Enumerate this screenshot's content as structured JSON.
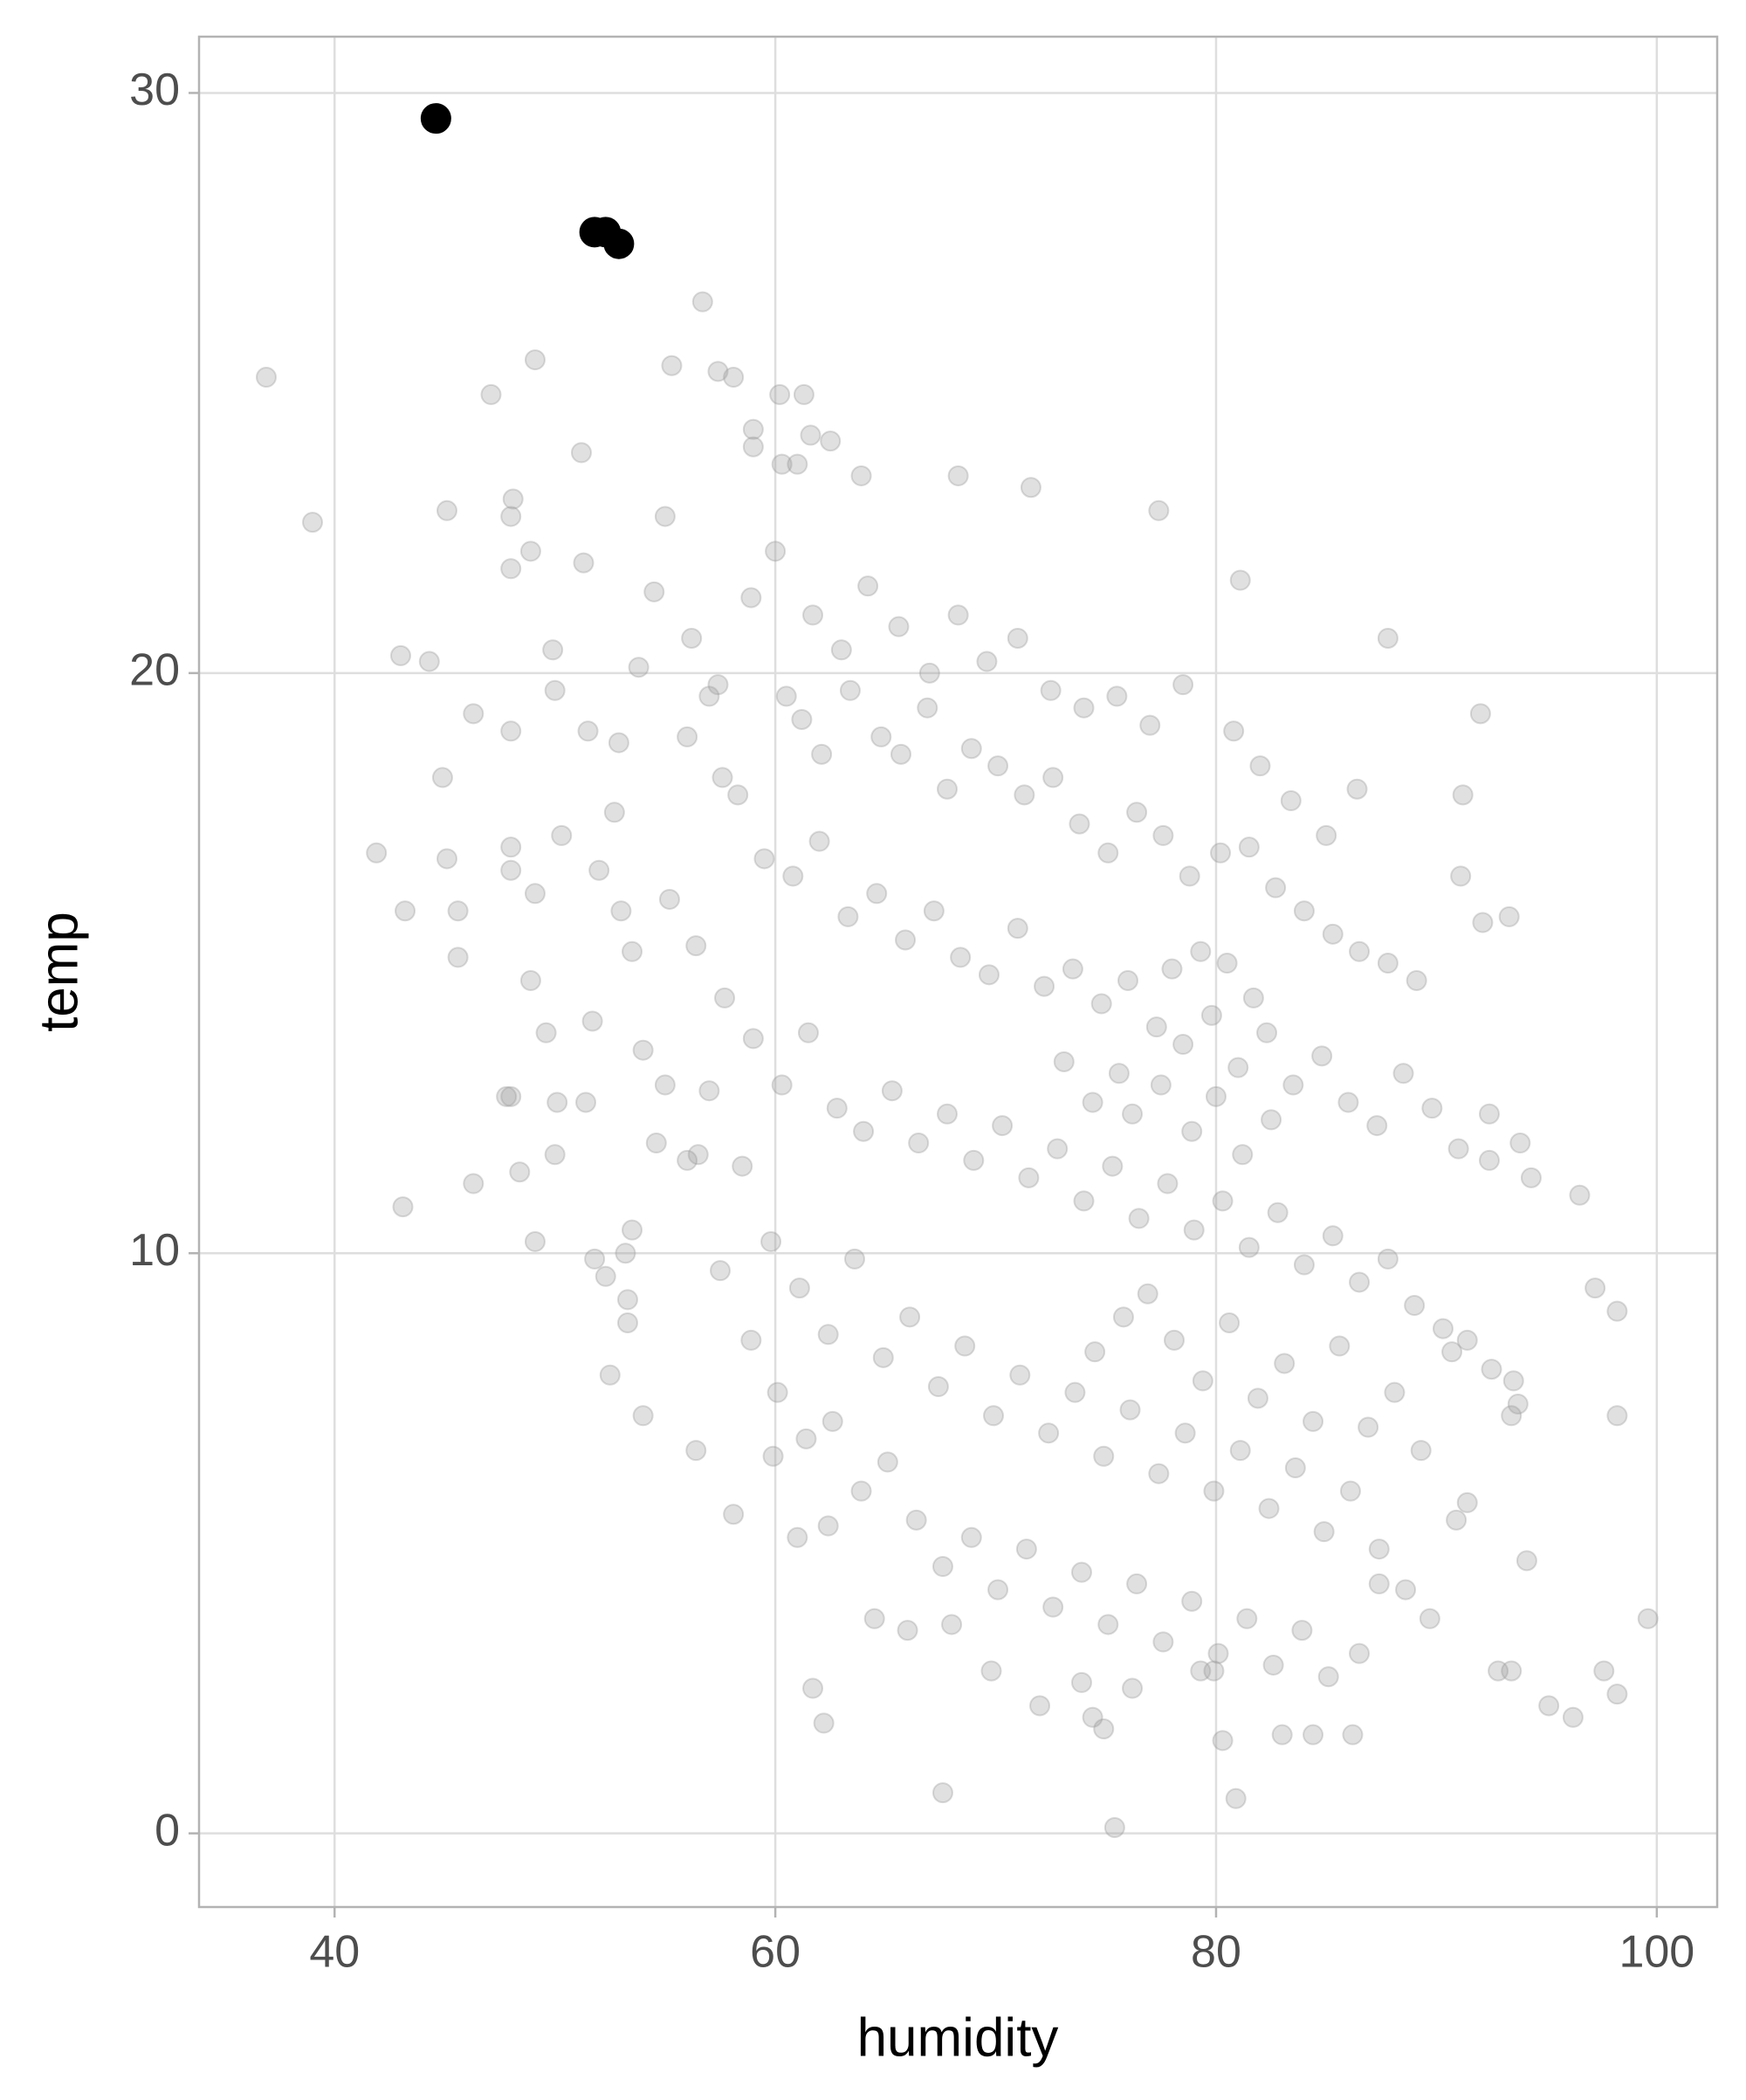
{
  "chart_data": {
    "type": "scatter",
    "x_label": "humidity",
    "y_label": "temp",
    "xlim": [
      33.85,
      102.74
    ],
    "ylim": [
      -1.27,
      30.97
    ],
    "xticks": [
      40,
      60,
      80,
      100
    ],
    "yticks": [
      0,
      10,
      20,
      30
    ],
    "grid": true,
    "series": [
      {
        "color": "#999999",
        "x": [
          36.9,
          39.0,
          41.9,
          43.2,
          43.0,
          44.3,
          43.1,
          45.1,
          44.9,
          45.1,
          45.6,
          45.6,
          46.3,
          46.3,
          47.1,
          49.1,
          48.0,
          48.1,
          48.0,
          48.9,
          48.0,
          48.0,
          48.0,
          49.1,
          48.9,
          49.6,
          48.0,
          47.8,
          48.4,
          49.1,
          49.9,
          50.0,
          50.3,
          50.1,
          50.0,
          51.2,
          51.3,
          51.4,
          51.7,
          51.8,
          52.3,
          52.5,
          52.7,
          53.0,
          53.2,
          53.3,
          53.3,
          53.5,
          54.0,
          54.6,
          55.3,
          56.7,
          57.4,
          58.1,
          56.4,
          58.1,
          56.5,
          55.0,
          56.0,
          57.0,
          57.6,
          59.0,
          59.0,
          60.2,
          61.3,
          60.3,
          61.0,
          61.6,
          62.5,
          63.9,
          68.3,
          71.6,
          77.4,
          81.1,
          87.8,
          92.0,
          91.2,
          91.1,
          93.3,
          92.1,
          96.5,
          97.2,
          98.2,
          98.2,
          99.6,
          94.1,
          92.8,
          93.4,
          95.1,
          96.2,
          97.6,
          98.2,
          94.3,
          93.8,
          92.4,
          92.4,
          93.5,
          93.7,
          93.4,
          92.5,
          91.4,
          90.7,
          90.9,
          91.4,
          89.7,
          88.6,
          87.4,
          86.5,
          86.2,
          84.4,
          83.0,
          80.3,
          80.9,
          75.4,
          67.6,
          62.2,
          61.7,
          69.8,
          72.0,
          73.9,
          74.4,
          74.9,
          76.2,
          79.3,
          79.9,
          60.5,
          61.2,
          62.1,
          63.4,
          64.8,
          65.7,
          66.9,
          67.8,
          68.9,
          70.1,
          71.3,
          72.6,
          73.8,
          75.1,
          76.4,
          77.6,
          78.8,
          80.2,
          81.5,
          82.7,
          84.0,
          85.3,
          86.5,
          87.8,
          89.1,
          58.3,
          59.5,
          60.8,
          62.0,
          63.3,
          64.6,
          65.9,
          67.2,
          68.4,
          69.7,
          71.0,
          72.2,
          73.5,
          74.8,
          76.0,
          77.3,
          78.5,
          79.8,
          81.0,
          82.3,
          83.5,
          84.8,
          86.0,
          87.3,
          88.5,
          89.8,
          91.0,
          55.2,
          56.4,
          57.7,
          59.0,
          60.3,
          61.5,
          62.8,
          64.0,
          65.3,
          66.5,
          67.8,
          69.0,
          70.3,
          71.5,
          72.8,
          74.0,
          75.3,
          76.5,
          77.8,
          79.0,
          80.3,
          81.5,
          82.8,
          84.0,
          85.3,
          86.5,
          87.8,
          89.0,
          90.3,
          57.0,
          58.5,
          59.8,
          61.1,
          62.4,
          63.6,
          64.9,
          66.1,
          67.4,
          68.6,
          69.9,
          71.1,
          72.4,
          73.6,
          74.9,
          76.1,
          77.4,
          78.6,
          79.9,
          81.1,
          82.4,
          83.6,
          84.9,
          86.1,
          87.4,
          60.1,
          61.4,
          62.6,
          63.9,
          65.1,
          66.4,
          67.6,
          68.9,
          70.1,
          71.4,
          72.6,
          73.9,
          75.1,
          76.4,
          77.6,
          78.9,
          80.1,
          81.4,
          82.6,
          83.9,
          85.1,
          52.9,
          53.8,
          54.5,
          56.2,
          57.4,
          58.9,
          60.0,
          61.7,
          63.0,
          64.2,
          65.6,
          67.0,
          68.3,
          69.6,
          71.0,
          72.5,
          74.0,
          75.5,
          77.0,
          78.5,
          80.8,
          82.0,
          83.4,
          85.0,
          86.4,
          51.5,
          52.0,
          53.5,
          54.0,
          55.0,
          56.0,
          57.5,
          58.9,
          59.9,
          61.0,
          62.4,
          64.5,
          66.0,
          68.0,
          74.5,
          75.8,
          76.9,
          78.1,
          79.4,
          80.6,
          81.9,
          83.1,
          84.4,
          85.6,
          86.9,
          88.1,
          89.3,
          76.2,
          77.5,
          78.9,
          80.0,
          81.2,
          82.5,
          73.1,
          74.4,
          75.6,
          78.0,
          79.3,
          80.5,
          81.7
        ],
        "values": [
          25.1,
          22.6,
          16.9,
          15.9,
          20.3,
          20.2,
          10.8,
          22.8,
          18.2,
          16.8,
          15.9,
          15.1,
          19.3,
          11.2,
          24.8,
          25.4,
          22.7,
          23.0,
          21.8,
          22.1,
          19.0,
          17.0,
          16.6,
          16.2,
          14.7,
          13.8,
          12.7,
          12.7,
          11.4,
          10.2,
          20.4,
          19.7,
          17.2,
          12.6,
          11.7,
          23.8,
          21.9,
          12.6,
          14.0,
          9.9,
          9.6,
          7.9,
          17.6,
          15.9,
          10.0,
          9.2,
          8.8,
          10.4,
          7.2,
          11.9,
          25.3,
          26.4,
          25.2,
          25.1,
          6.6,
          5.5,
          11.7,
          22.7,
          18.9,
          19.6,
          18.2,
          24.2,
          23.9,
          24.8,
          24.8,
          23.6,
          23.6,
          24.1,
          24.0,
          23.4,
          23.4,
          23.2,
          22.8,
          21.6,
          20.6,
          19.3,
          17.9,
          16.5,
          15.8,
          15.7,
          11.0,
          9.4,
          9.0,
          7.2,
          3.7,
          4.7,
          2.8,
          2.8,
          2.2,
          2.0,
          2.8,
          2.4,
          11.3,
          11.9,
          11.6,
          12.4,
          7.8,
          7.4,
          7.2,
          8.0,
          8.5,
          8.3,
          5.4,
          5.7,
          3.7,
          4.2,
          4.3,
          3.1,
          1.7,
          1.7,
          1.7,
          1.6,
          0.6,
          0.1,
          0.7,
          1.9,
          2.5,
          2.8,
          2.2,
          2.6,
          2.0,
          1.8,
          2.5,
          2.8,
          2.8,
          19.6,
          19.2,
          18.6,
          19.7,
          18.9,
          18.6,
          19.4,
          18.0,
          18.7,
          18.4,
          17.9,
          18.2,
          17.4,
          16.9,
          17.6,
          17.2,
          16.5,
          16.9,
          17.0,
          16.3,
          15.9,
          15.5,
          15.2,
          15.0,
          14.7,
          17.9,
          16.8,
          16.5,
          17.1,
          15.8,
          16.2,
          15.4,
          15.9,
          15.1,
          14.8,
          15.6,
          14.6,
          14.9,
          14.3,
          14.7,
          13.9,
          13.6,
          14.1,
          13.2,
          13.8,
          12.9,
          13.4,
          12.6,
          12.2,
          13.1,
          12.5,
          11.8,
          16.1,
          15.3,
          14.4,
          13.7,
          12.9,
          13.8,
          12.5,
          12.1,
          12.8,
          11.9,
          12.4,
          11.6,
          12.2,
          11.3,
          11.8,
          10.9,
          11.5,
          10.6,
          11.2,
          10.4,
          10.9,
          10.1,
          10.7,
          9.8,
          10.3,
          9.5,
          9.9,
          9.1,
          8.7,
          12.8,
          11.5,
          10.2,
          9.4,
          8.6,
          9.9,
          8.2,
          8.9,
          7.7,
          8.4,
          7.2,
          7.9,
          6.9,
          7.6,
          6.5,
          7.3,
          6.2,
          6.9,
          5.9,
          6.6,
          5.6,
          6.3,
          5.2,
          5.9,
          4.9,
          7.6,
          6.8,
          7.1,
          5.9,
          6.4,
          5.4,
          4.6,
          5.1,
          4.2,
          4.9,
          3.9,
          4.5,
          3.6,
          4.3,
          3.3,
          4.0,
          3.1,
          3.7,
          2.9,
          3.5,
          2.7,
          18.8,
          20.1,
          21.4,
          20.6,
          19.8,
          21.3,
          22.1,
          21.0,
          20.4,
          21.5,
          20.8,
          20.0,
          21.0,
          20.2,
          20.6,
          19.7,
          19.4,
          19.6,
          19.1,
          19.8,
          19.0,
          18.4,
          17.8,
          17.2,
          18.0,
          19.0,
          16.6,
          15.2,
          13.5,
          12.9,
          11.6,
          9.7,
          8.5,
          6.5,
          5.1,
          5.3,
          3.7,
          3.5,
          3.6,
          8.3,
          8.9,
          9.3,
          8.5,
          7.8,
          8.8,
          7.5,
          8.1,
          7.1,
          8.4,
          7.0,
          7.6,
          6.6,
          12.4,
          12.9,
          12.1,
          12.7,
          11.7,
          12.3,
          13.3,
          12.6,
          13.1,
          14.9,
          15.2,
          15.0,
          14.4
        ]
      },
      {
        "color": "#000000",
        "x": [
          44.6,
          51.8,
          52.3,
          52.9
        ],
        "values": [
          29.56,
          27.6,
          27.6,
          27.4
        ]
      }
    ]
  }
}
